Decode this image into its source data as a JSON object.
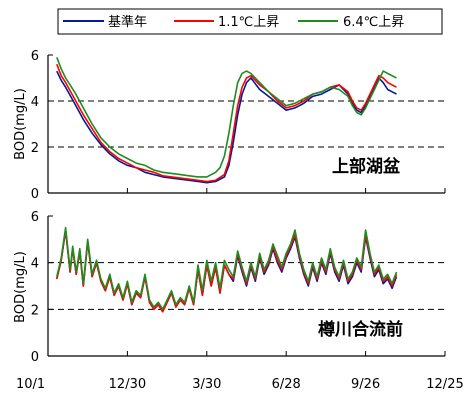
{
  "chart_data": {
    "type": "line",
    "colors": {
      "base": "#001c9c",
      "plus11": "#ff0000",
      "plus64": "#1f8c1f"
    },
    "legend": {
      "placement": "top",
      "entries": [
        {
          "key": "base",
          "label": "基準年"
        },
        {
          "key": "plus11",
          "label": "1.1℃上昇"
        },
        {
          "key": "plus64",
          "label": "6.4℃上昇"
        }
      ]
    },
    "x_axis": {
      "ticks": [
        "10/1",
        "12/30",
        "3/30",
        "6/28",
        "9/26",
        "12/25"
      ],
      "tick_days": [
        0,
        90,
        180,
        270,
        360,
        450
      ],
      "range_days": [
        0,
        450
      ]
    },
    "panels": [
      {
        "label": "上部湖盆",
        "ylabel": "BOD(mg/L)",
        "ylim": [
          0,
          6
        ],
        "yticks": [
          0,
          2,
          4,
          6
        ],
        "dashed_grid": [
          2,
          4
        ],
        "series": [
          {
            "key": "base",
            "x": [
              10,
              15,
              20,
              30,
              40,
              50,
              60,
              70,
              80,
              90,
              100,
              110,
              120,
              130,
              140,
              150,
              160,
              170,
              180,
              190,
              200,
              205,
              210,
              215,
              220,
              225,
              230,
              240,
              250,
              260,
              270,
              280,
              290,
              300,
              310,
              320,
              330,
              340,
              345,
              350,
              355,
              360,
              365,
              370,
              375,
              380,
              385,
              390,
              395
            ],
            "y": [
              5.3,
              4.9,
              4.6,
              3.9,
              3.2,
              2.6,
              2.1,
              1.7,
              1.4,
              1.2,
              1.1,
              0.9,
              0.8,
              0.7,
              0.65,
              0.6,
              0.55,
              0.5,
              0.45,
              0.5,
              0.7,
              1.2,
              2.2,
              3.4,
              4.3,
              4.8,
              5.0,
              4.5,
              4.2,
              3.9,
              3.6,
              3.7,
              3.9,
              4.2,
              4.3,
              4.5,
              4.7,
              4.3,
              3.9,
              3.6,
              3.5,
              3.8,
              4.2,
              4.6,
              5.0,
              4.8,
              4.5,
              4.4,
              4.3
            ]
          },
          {
            "key": "plus11",
            "x": [
              10,
              15,
              20,
              30,
              40,
              50,
              60,
              70,
              80,
              90,
              100,
              110,
              120,
              130,
              140,
              150,
              160,
              170,
              180,
              190,
              200,
              205,
              210,
              215,
              220,
              225,
              230,
              240,
              250,
              260,
              270,
              280,
              290,
              300,
              310,
              320,
              330,
              340,
              345,
              350,
              355,
              360,
              365,
              370,
              375,
              380,
              385,
              390,
              395
            ],
            "y": [
              5.6,
              5.1,
              4.8,
              4.1,
              3.4,
              2.8,
              2.2,
              1.8,
              1.5,
              1.3,
              1.1,
              1.0,
              0.9,
              0.75,
              0.7,
              0.65,
              0.6,
              0.55,
              0.5,
              0.55,
              0.8,
              1.4,
              2.6,
              3.8,
              4.6,
              5.0,
              5.1,
              4.7,
              4.4,
              4.0,
              3.7,
              3.8,
              4.0,
              4.3,
              4.4,
              4.6,
              4.7,
              4.4,
              4.0,
              3.7,
              3.6,
              3.9,
              4.3,
              4.7,
              5.1,
              5.0,
              4.8,
              4.7,
              4.6
            ]
          },
          {
            "key": "plus64",
            "x": [
              10,
              15,
              20,
              30,
              40,
              50,
              60,
              70,
              80,
              90,
              100,
              110,
              120,
              130,
              140,
              150,
              160,
              170,
              180,
              190,
              195,
              200,
              205,
              210,
              215,
              220,
              225,
              230,
              240,
              250,
              260,
              270,
              280,
              290,
              300,
              310,
              320,
              330,
              340,
              345,
              350,
              355,
              360,
              365,
              370,
              375,
              380,
              385,
              390,
              395
            ],
            "y": [
              5.9,
              5.4,
              5.0,
              4.4,
              3.7,
              3.0,
              2.4,
              2.0,
              1.7,
              1.5,
              1.3,
              1.2,
              1.0,
              0.9,
              0.85,
              0.8,
              0.75,
              0.7,
              0.7,
              0.9,
              1.1,
              1.6,
              2.6,
              3.8,
              4.8,
              5.2,
              5.3,
              5.2,
              4.8,
              4.4,
              4.1,
              3.8,
              3.9,
              4.1,
              4.3,
              4.4,
              4.6,
              4.5,
              4.2,
              3.8,
              3.5,
              3.4,
              3.7,
              4.1,
              4.5,
              4.9,
              5.3,
              5.2,
              5.1,
              5.0
            ]
          }
        ]
      },
      {
        "label": "樽川合流前",
        "ylabel": "BOD(mg/L)",
        "ylim": [
          0,
          6
        ],
        "yticks": [
          0,
          2,
          4,
          6
        ],
        "dashed_grid": [
          2,
          4
        ],
        "series": [
          {
            "key": "base",
            "x": [
              10,
              15,
              20,
              25,
              28,
              32,
              36,
              40,
              45,
              50,
              55,
              60,
              65,
              70,
              75,
              80,
              85,
              90,
              95,
              100,
              105,
              110,
              115,
              120,
              125,
              130,
              135,
              140,
              145,
              150,
              155,
              160,
              165,
              170,
              175,
              180,
              185,
              190,
              195,
              200,
              205,
              210,
              215,
              220,
              225,
              230,
              235,
              240,
              245,
              250,
              255,
              260,
              265,
              270,
              275,
              280,
              285,
              290,
              295,
              300,
              305,
              310,
              315,
              320,
              325,
              330,
              335,
              340,
              345,
              350,
              355,
              360,
              365,
              370,
              375,
              380,
              385,
              390,
              393,
              395
            ],
            "y": [
              3.3,
              4.1,
              5.4,
              3.6,
              4.6,
              3.5,
              4.5,
              3.0,
              4.9,
              3.4,
              4.0,
              3.2,
              2.8,
              3.4,
              2.6,
              3.0,
              2.4,
              3.1,
              2.2,
              2.7,
              2.5,
              3.4,
              2.3,
              2.0,
              2.2,
              1.9,
              2.3,
              2.7,
              2.1,
              2.4,
              2.2,
              2.9,
              2.2,
              3.7,
              2.6,
              3.9,
              3.0,
              3.8,
              2.7,
              3.9,
              3.5,
              3.2,
              4.3,
              3.6,
              3.0,
              3.8,
              3.2,
              4.2,
              3.5,
              3.9,
              4.6,
              4.0,
              3.6,
              4.2,
              4.6,
              5.1,
              4.2,
              3.5,
              3.0,
              3.8,
              3.2,
              4.0,
              3.5,
              4.4,
              3.6,
              3.2,
              3.9,
              3.1,
              3.4,
              4.0,
              3.6,
              5.1,
              4.2,
              3.4,
              3.7,
              3.1,
              3.3,
              2.9,
              3.2,
              3.4
            ]
          },
          {
            "key": "plus11",
            "x": [
              10,
              15,
              20,
              25,
              28,
              32,
              36,
              40,
              45,
              50,
              55,
              60,
              65,
              70,
              75,
              80,
              85,
              90,
              95,
              100,
              105,
              110,
              115,
              120,
              125,
              130,
              135,
              140,
              145,
              150,
              155,
              160,
              165,
              170,
              175,
              180,
              185,
              190,
              195,
              200,
              205,
              210,
              215,
              220,
              225,
              230,
              235,
              240,
              245,
              250,
              255,
              260,
              265,
              270,
              275,
              280,
              285,
              290,
              295,
              300,
              305,
              310,
              315,
              320,
              325,
              330,
              335,
              340,
              345,
              350,
              355,
              360,
              365,
              370,
              375,
              380,
              385,
              390,
              393,
              395
            ],
            "y": [
              3.3,
              4.1,
              5.4,
              3.6,
              4.6,
              3.5,
              4.5,
              3.0,
              4.9,
              3.4,
              4.0,
              3.2,
              2.8,
              3.4,
              2.6,
              3.0,
              2.4,
              3.1,
              2.2,
              2.7,
              2.5,
              3.4,
              2.3,
              2.0,
              2.2,
              1.9,
              2.3,
              2.7,
              2.1,
              2.4,
              2.2,
              2.9,
              2.2,
              3.7,
              2.6,
              3.9,
              3.0,
              3.8,
              2.7,
              3.9,
              3.5,
              3.3,
              4.4,
              3.7,
              3.1,
              3.9,
              3.3,
              4.3,
              3.6,
              4.0,
              4.7,
              4.1,
              3.7,
              4.3,
              4.7,
              5.2,
              4.3,
              3.6,
              3.1,
              3.9,
              3.3,
              4.1,
              3.6,
              4.5,
              3.7,
              3.3,
              4.0,
              3.2,
              3.5,
              4.1,
              3.7,
              5.2,
              4.3,
              3.5,
              3.8,
              3.2,
              3.4,
              3.0,
              3.3,
              3.5
            ]
          },
          {
            "key": "plus64",
            "x": [
              10,
              15,
              20,
              25,
              28,
              32,
              36,
              40,
              45,
              50,
              55,
              60,
              65,
              70,
              75,
              80,
              85,
              90,
              95,
              100,
              105,
              110,
              115,
              120,
              125,
              130,
              135,
              140,
              145,
              150,
              155,
              160,
              165,
              170,
              175,
              180,
              185,
              190,
              195,
              200,
              205,
              210,
              215,
              220,
              225,
              230,
              235,
              240,
              245,
              250,
              255,
              260,
              265,
              270,
              275,
              280,
              285,
              290,
              295,
              300,
              305,
              310,
              315,
              320,
              325,
              330,
              335,
              340,
              345,
              350,
              355,
              360,
              365,
              370,
              375,
              380,
              385,
              390,
              393,
              395
            ],
            "y": [
              3.4,
              4.2,
              5.5,
              3.7,
              4.7,
              3.6,
              4.6,
              3.1,
              5.0,
              3.5,
              4.1,
              3.3,
              2.9,
              3.5,
              2.7,
              3.1,
              2.5,
              3.2,
              2.3,
              2.8,
              2.6,
              3.5,
              2.4,
              2.1,
              2.3,
              2.0,
              2.4,
              2.8,
              2.2,
              2.5,
              2.3,
              3.0,
              2.3,
              3.9,
              2.8,
              4.1,
              3.2,
              4.0,
              2.9,
              4.1,
              3.7,
              3.4,
              4.5,
              3.8,
              3.2,
              4.0,
              3.4,
              4.4,
              3.7,
              4.1,
              4.8,
              4.3,
              3.8,
              4.4,
              4.8,
              5.4,
              4.4,
              3.7,
              3.2,
              4.0,
              3.4,
              4.2,
              3.7,
              4.6,
              3.8,
              3.4,
              4.1,
              3.3,
              3.6,
              4.2,
              3.8,
              5.4,
              4.4,
              3.6,
              3.9,
              3.3,
              3.5,
              3.1,
              3.4,
              3.6
            ]
          }
        ]
      }
    ]
  }
}
